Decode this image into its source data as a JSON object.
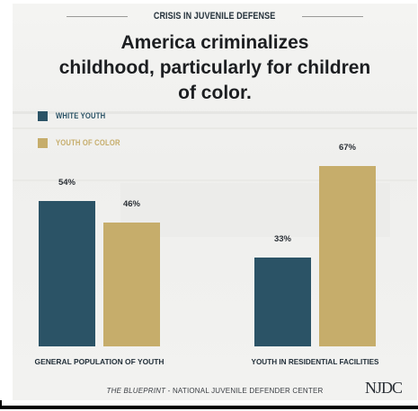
{
  "kicker": "CRISIS IN JUVENILE DEFENSE",
  "headline": {
    "line1": "America criminalizes",
    "line2": "childhood, particularly for children",
    "line3": "of color."
  },
  "footer": {
    "title_italic": "THE BLUEPRINT",
    "rest": " - NATIONAL JUVENILE DEFENDER CENTER"
  },
  "logo_text": "NJDC",
  "colors": {
    "white_youth": "#2b5366",
    "youth_of_color": "#c6ad6b"
  },
  "chart_data": {
    "type": "bar",
    "categories": [
      "GENERAL POPULATION OF YOUTH",
      "YOUTH IN RESIDENTIAL FACILITIES"
    ],
    "series": [
      {
        "name": "WHITE YOUTH",
        "values": [
          54,
          33
        ],
        "labels": [
          "54%",
          "33%"
        ]
      },
      {
        "name": "YOUTH OF COLOR",
        "values": [
          46,
          67
        ],
        "labels": [
          "46%",
          "67%"
        ]
      }
    ],
    "unit": "%",
    "ylim": [
      0,
      100
    ],
    "legend": "top-left",
    "grid": false
  }
}
